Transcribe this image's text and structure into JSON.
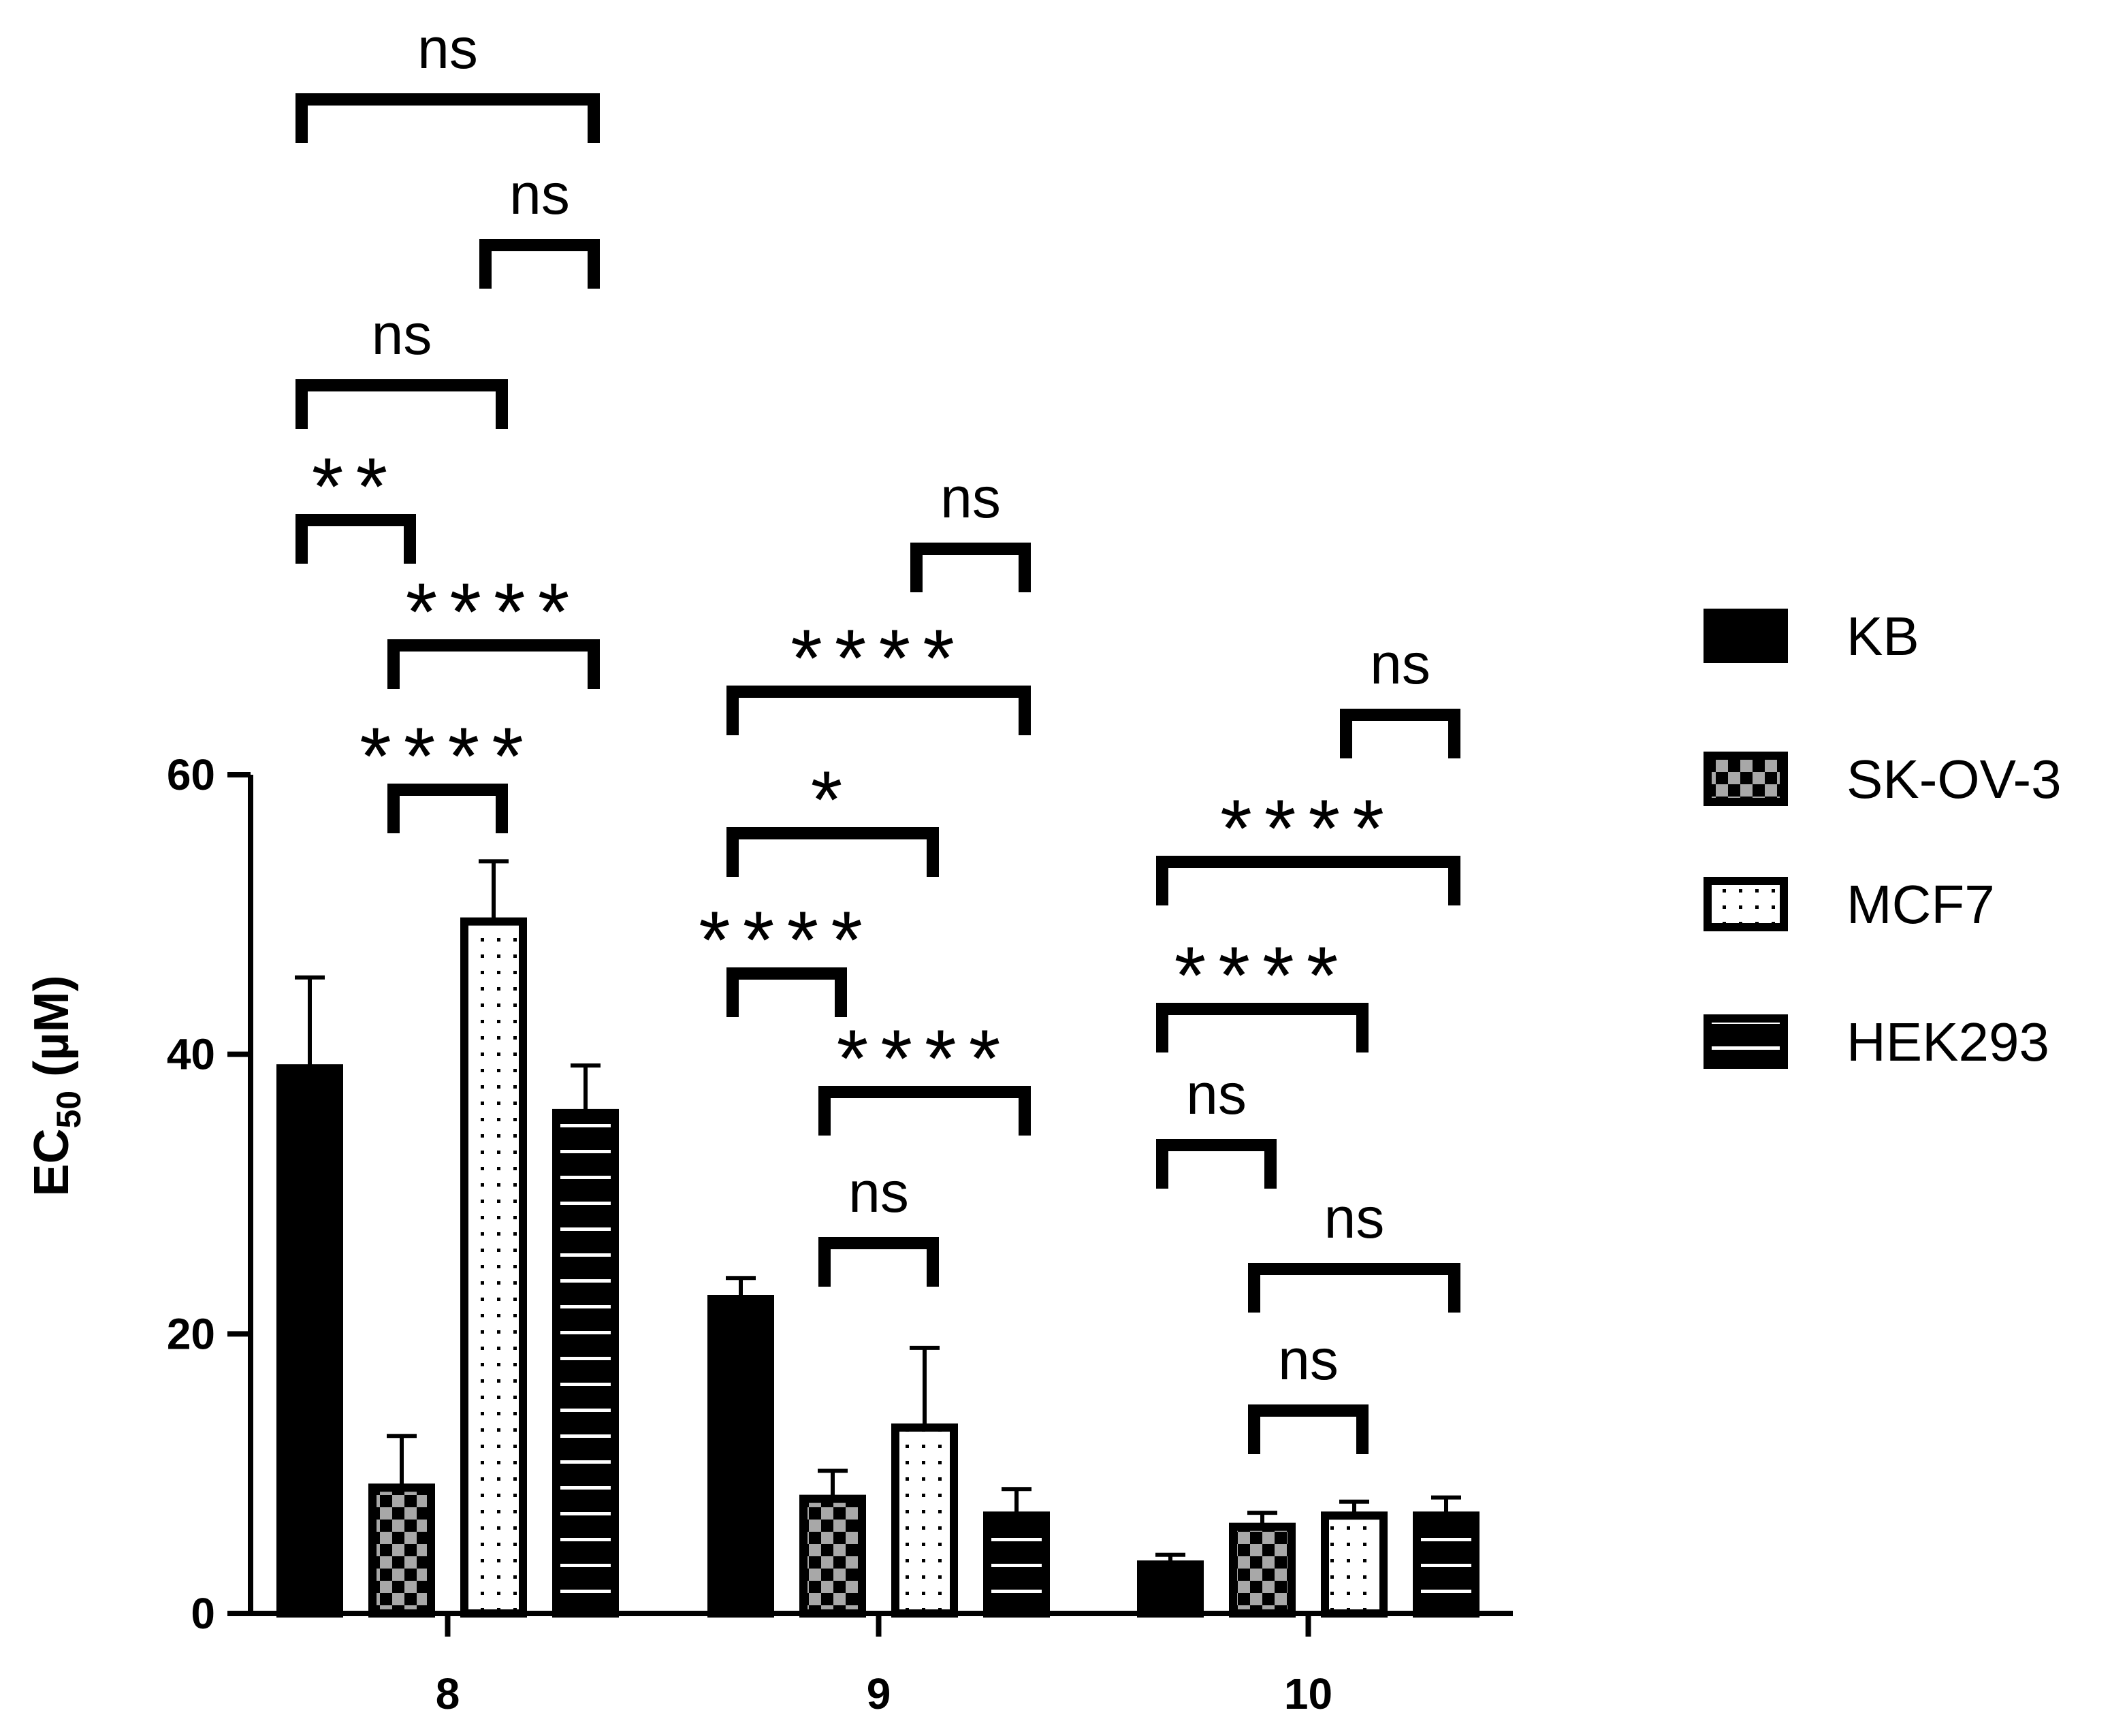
{
  "chart_data": {
    "type": "bar",
    "title": "",
    "xlabel": "",
    "ylabel": {
      "main": "EC",
      "sub": "50",
      "suffix": " (µM)"
    },
    "ylim": [
      0,
      60
    ],
    "yticks": [
      "0",
      "20",
      "40",
      "60"
    ],
    "categories": [
      "8",
      "9",
      "10"
    ],
    "series": [
      {
        "name": "KB",
        "pattern": "solid",
        "values": [
          39,
          22.5,
          3.5
        ],
        "errors": [
          6.5,
          1.5,
          0.7
        ]
      },
      {
        "name": "SK-OV-3",
        "pattern": "checker",
        "values": [
          9,
          8.2,
          6.2
        ],
        "errors": [
          3.7,
          2.0,
          1.0
        ]
      },
      {
        "name": "MCF7",
        "pattern": "dots",
        "values": [
          49.5,
          13.3,
          7.0
        ],
        "errors": [
          4.3,
          5.7,
          1.0
        ]
      },
      {
        "name": "HEK293",
        "pattern": "stripes",
        "values": [
          35.8,
          7.0,
          7.0
        ],
        "errors": [
          3.4,
          1.9,
          1.3
        ]
      }
    ],
    "legend_position": "right",
    "significance": [
      {
        "category": "8",
        "from": 1,
        "to": 4,
        "label": "ns"
      },
      {
        "category": "8",
        "from": 3,
        "to": 4,
        "label": "ns"
      },
      {
        "category": "8",
        "from": 1,
        "to": 3,
        "label": "ns"
      },
      {
        "category": "8",
        "from": 1,
        "to": 2,
        "label": "**"
      },
      {
        "category": "8",
        "from": 2,
        "to": 4,
        "label": "****"
      },
      {
        "category": "8",
        "from": 2,
        "to": 3,
        "label": "****"
      },
      {
        "category": "9",
        "from": 3,
        "to": 4,
        "label": "ns"
      },
      {
        "category": "9",
        "from": 1,
        "to": 4,
        "label": "****"
      },
      {
        "category": "9",
        "from": 1,
        "to": 3,
        "label": "*"
      },
      {
        "category": "9",
        "from": 1,
        "to": 2,
        "label": "****"
      },
      {
        "category": "9",
        "from": 2,
        "to": 4,
        "label": "****"
      },
      {
        "category": "9",
        "from": 2,
        "to": 3,
        "label": "ns"
      },
      {
        "category": "10",
        "from": 3,
        "to": 4,
        "label": "ns"
      },
      {
        "category": "10",
        "from": 1,
        "to": 4,
        "label": "****"
      },
      {
        "category": "10",
        "from": 1,
        "to": 3,
        "label": "****"
      },
      {
        "category": "10",
        "from": 1,
        "to": 2,
        "label": "ns"
      },
      {
        "category": "10",
        "from": 2,
        "to": 4,
        "label": "ns"
      },
      {
        "category": "10",
        "from": 2,
        "to": 3,
        "label": "ns"
      }
    ]
  }
}
